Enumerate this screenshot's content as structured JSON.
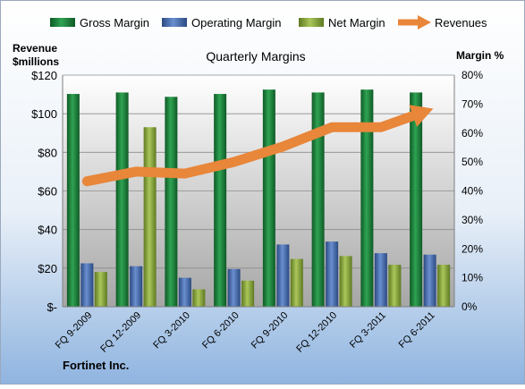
{
  "chart_data": {
    "type": "bar",
    "title": "Quarterly Margins",
    "y_left_label_line1": "Revenue",
    "y_left_label_line2": "$millions",
    "y_right_label": "Margin %",
    "footer": "Fortinet Inc.",
    "categories": [
      "FQ 9-2009",
      "FQ 12-2009",
      "FQ 3-2010",
      "FQ 6-2010",
      "FQ 9-2010",
      "FQ 12-2010",
      "FQ 3-2011",
      "FQ 6-2011"
    ],
    "y_left_ticks": [
      "$-",
      "$20",
      "$40",
      "$60",
      "$80",
      "$100",
      "$120"
    ],
    "y_left_range": [
      0,
      120
    ],
    "y_right_ticks": [
      "0%",
      "10%",
      "20%",
      "30%",
      "40%",
      "50%",
      "60%",
      "70%",
      "80%"
    ],
    "y_right_range": [
      0,
      80
    ],
    "series": [
      {
        "name": "Gross Margin",
        "axis": "right",
        "values": [
          73.5,
          74,
          72.5,
          73.5,
          75,
          74,
          75,
          74
        ],
        "color": "#1e8a3c"
      },
      {
        "name": "Operating Margin",
        "axis": "right",
        "values": [
          15,
          14,
          10,
          13,
          21.5,
          22.5,
          18.5,
          18
        ],
        "color": "#4a6fb0"
      },
      {
        "name": "Net Margin",
        "axis": "right",
        "values": [
          12,
          62,
          6,
          9,
          16.5,
          17.5,
          14.5,
          14.5
        ],
        "color": "#8fac3f"
      }
    ],
    "revenues": {
      "name": "Revenues",
      "axis": "left",
      "values": [
        65,
        70,
        69,
        75,
        83,
        93,
        93,
        102
      ],
      "color": "#e8863a"
    },
    "grid": true,
    "legend_position": "top"
  }
}
